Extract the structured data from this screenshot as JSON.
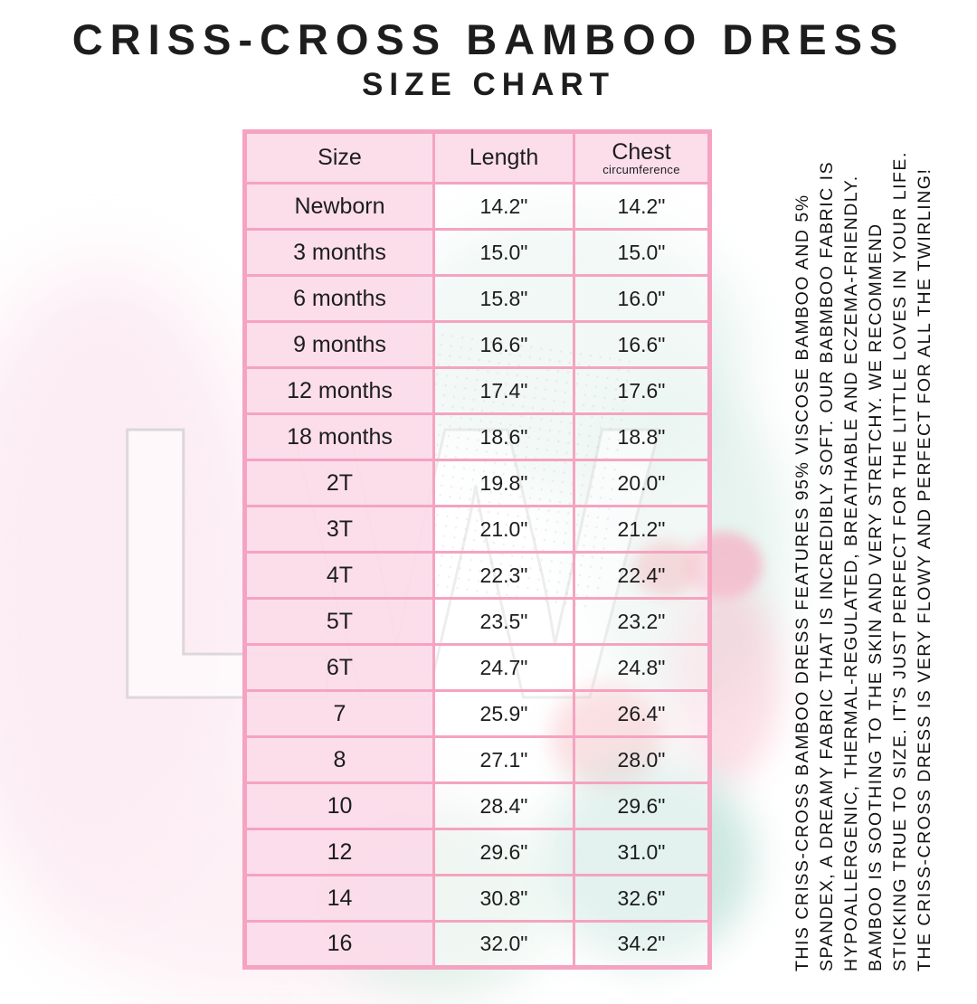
{
  "page": {
    "title": "CRISS-CROSS BAMBOO DRESS",
    "subtitle": "SIZE CHART"
  },
  "table": {
    "header": {
      "size": "Size",
      "length": "Length",
      "chest": "Chest",
      "chest_sub": "circumference"
    },
    "rows": [
      {
        "size": "Newborn",
        "length": "14.2\"",
        "chest": "14.2\""
      },
      {
        "size": "3 months",
        "length": "15.0\"",
        "chest": "15.0\""
      },
      {
        "size": "6 months",
        "length": "15.8\"",
        "chest": "16.0\""
      },
      {
        "size": "9 months",
        "length": "16.6\"",
        "chest": "16.6\""
      },
      {
        "size": "12 months",
        "length": "17.4\"",
        "chest": "17.6\""
      },
      {
        "size": "18 months",
        "length": "18.6\"",
        "chest": "18.8\""
      },
      {
        "size": "2T",
        "length": "19.8\"",
        "chest": "20.0\""
      },
      {
        "size": "3T",
        "length": "21.0\"",
        "chest": "21.2\""
      },
      {
        "size": "4T",
        "length": "22.3\"",
        "chest": "22.4\""
      },
      {
        "size": "5T",
        "length": "23.5\"",
        "chest": "23.2\""
      },
      {
        "size": "6T",
        "length": "24.7\"",
        "chest": "24.8\""
      },
      {
        "size": "7",
        "length": "25.9\"",
        "chest": "26.4\""
      },
      {
        "size": "8",
        "length": "27.1\"",
        "chest": "28.0\""
      },
      {
        "size": "10",
        "length": "28.4\"",
        "chest": "29.6\""
      },
      {
        "size": "12",
        "length": "29.6\"",
        "chest": "31.0\""
      },
      {
        "size": "14",
        "length": "30.8\"",
        "chest": "32.6\""
      },
      {
        "size": "16",
        "length": "32.0\"",
        "chest": "34.2\""
      }
    ]
  },
  "side_note": {
    "lines": [
      "THIS CRISS-CROSS BAMBOO DRESS FEATURES 95% VISCOSE BAMBOO AND 5%",
      "SPANDEX, A DREAMY FABRIC THAT IS INCREDIBLY SOFT. OUR BABMBOO FABRIC IS",
      "HYPOALLERGENIC, THERMAL-REGULATED, BREATHABLE AND ECZEMA-FRIENDLY.",
      "BAMBOO IS SOOTHING TO THE SKIN AND VERY STRETCHY. WE RECOMMEND",
      "STICKING TRUE TO SIZE. IT'S JUST PERFECT FOR THE LITTLE LOVES IN YOUR LIFE.",
      "THE CRISS-CROSS DRESS IS VERY FLOWY AND PERFECT FOR ALL THE TWIRLING!"
    ]
  },
  "watermark": {
    "letters": "LW"
  },
  "colors": {
    "cell_pink": "#fcdcea",
    "border_pink": "#f5a3c1",
    "text": "#1d1d1d"
  },
  "chart_data": {
    "type": "table",
    "title": "CRISS-CROSS BAMBOO DRESS SIZE CHART",
    "columns": [
      "Size",
      "Length",
      "Chest circumference"
    ],
    "rows": [
      [
        "Newborn",
        "14.2\"",
        "14.2\""
      ],
      [
        "3 months",
        "15.0\"",
        "15.0\""
      ],
      [
        "6 months",
        "15.8\"",
        "16.0\""
      ],
      [
        "9 months",
        "16.6\"",
        "16.6\""
      ],
      [
        "12 months",
        "17.4\"",
        "17.6\""
      ],
      [
        "18 months",
        "18.6\"",
        "18.8\""
      ],
      [
        "2T",
        "19.8\"",
        "20.0\""
      ],
      [
        "3T",
        "21.0\"",
        "21.2\""
      ],
      [
        "4T",
        "22.3\"",
        "22.4\""
      ],
      [
        "5T",
        "23.5\"",
        "23.2\""
      ],
      [
        "6T",
        "24.7\"",
        "24.8\""
      ],
      [
        "7",
        "25.9\"",
        "26.4\""
      ],
      [
        "8",
        "27.1\"",
        "28.0\""
      ],
      [
        "10",
        "28.4\"",
        "29.6\""
      ],
      [
        "12",
        "29.6\"",
        "31.0\""
      ],
      [
        "14",
        "30.8\"",
        "32.6\""
      ],
      [
        "16",
        "32.0\"",
        "34.2\""
      ]
    ]
  }
}
